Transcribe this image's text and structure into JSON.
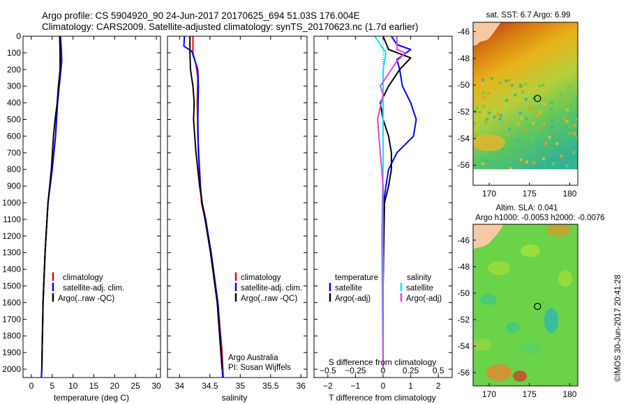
{
  "header": {
    "line1": "Argo profile: CS 5904920_90 24-Jun-2017 20170625_694 51.03S 176.004E",
    "line2": "Climatology: CARS2009. Satellite-adjusted climatology: synTS_20170623.nc (1.7d earlier)"
  },
  "stamp": "©IMOS 30-Jun-2017 20:41:28",
  "colors": {
    "climatology": "#ff0000",
    "satellite": "#0000ff",
    "argo": "#000000",
    "salinity_sat": "#00e5ff",
    "salinity_argo": "#e040e0",
    "land": "#f6c9a4",
    "ocean_sst_hi": "#a52a0a",
    "ocean_sst_lo": "#3dbe8c",
    "ocean_sla": "#6ad34a"
  },
  "chart_data": [
    {
      "type": "line",
      "name": "temperature-profile",
      "xlabel": "temperature (deg C)",
      "ylabel": "",
      "xlim": [
        -2,
        31
      ],
      "ylim": [
        0,
        2050
      ],
      "y_reversed": true,
      "xticks": [
        0,
        5,
        10,
        15,
        20,
        25,
        30
      ],
      "yticks": [
        0,
        100,
        200,
        300,
        400,
        500,
        600,
        700,
        800,
        900,
        1000,
        1100,
        1200,
        1300,
        1400,
        1500,
        1600,
        1700,
        1800,
        1900,
        2000
      ],
      "legend": [
        "climatology",
        "satellite-adj. clim.",
        "Argo(..raw -QC)"
      ],
      "legend_position": "lower-center",
      "series": [
        {
          "name": "climatology",
          "color": "#ff0000",
          "points": [
            [
              7.0,
              0
            ],
            [
              7.0,
              100
            ],
            [
              7.0,
              150
            ],
            [
              6.8,
              250
            ],
            [
              6.3,
              400
            ],
            [
              5.8,
              600
            ],
            [
              5.0,
              800
            ],
            [
              4.0,
              1000
            ],
            [
              3.3,
              1300
            ],
            [
              2.8,
              1600
            ],
            [
              2.5,
              2000
            ],
            [
              2.4,
              2050
            ]
          ]
        },
        {
          "name": "satellite-adj. clim.",
          "color": "#0000ff",
          "points": [
            [
              7.0,
              0
            ],
            [
              7.2,
              80
            ],
            [
              7.3,
              150
            ],
            [
              6.9,
              250
            ],
            [
              6.3,
              400
            ],
            [
              5.8,
              600
            ],
            [
              5.0,
              800
            ],
            [
              4.0,
              1000
            ],
            [
              3.3,
              1300
            ],
            [
              2.8,
              1600
            ],
            [
              2.5,
              2000
            ],
            [
              2.4,
              2050
            ]
          ]
        },
        {
          "name": "Argo(..raw -QC)",
          "color": "#000000",
          "points": [
            [
              6.8,
              0
            ],
            [
              6.9,
              100
            ],
            [
              6.9,
              200
            ],
            [
              6.5,
              300
            ],
            [
              6.2,
              400
            ],
            [
              5.7,
              500
            ],
            [
              5.3,
              600
            ],
            [
              4.8,
              800
            ],
            [
              4.0,
              1000
            ],
            [
              3.3,
              1300
            ],
            [
              2.8,
              1600
            ],
            [
              2.5,
              2000
            ]
          ]
        }
      ]
    },
    {
      "type": "line",
      "name": "salinity-profile",
      "xlabel": "salinity",
      "ylabel": "",
      "xlim": [
        33.8,
        36.1
      ],
      "ylim": [
        0,
        2050
      ],
      "y_reversed": true,
      "xticks": [
        34,
        34.5,
        35,
        35.5,
        36
      ],
      "legend": [
        "climatology",
        "satellite-adj. clim.",
        "Argo(..raw -QC)"
      ],
      "legend_position": "lower-center",
      "annotation": [
        "Argo Australia",
        "PI: Susan Wijffels"
      ],
      "series": [
        {
          "name": "climatology",
          "color": "#ff0000",
          "points": [
            [
              34.22,
              0
            ],
            [
              34.22,
              100
            ],
            [
              34.27,
              170
            ],
            [
              34.3,
              250
            ],
            [
              34.29,
              400
            ],
            [
              34.3,
              600
            ],
            [
              34.33,
              800
            ],
            [
              34.36,
              1000
            ],
            [
              34.42,
              1100
            ],
            [
              34.52,
              1300
            ],
            [
              34.63,
              1600
            ],
            [
              34.7,
              1900
            ],
            [
              34.72,
              2050
            ]
          ]
        },
        {
          "name": "satellite-adj. clim.",
          "color": "#0000ff",
          "points": [
            [
              34.08,
              0
            ],
            [
              34.07,
              60
            ],
            [
              34.2,
              90
            ],
            [
              34.3,
              200
            ],
            [
              34.31,
              300
            ],
            [
              34.3,
              500
            ],
            [
              34.31,
              700
            ],
            [
              34.34,
              900
            ],
            [
              34.37,
              1000
            ],
            [
              34.43,
              1100
            ],
            [
              34.52,
              1300
            ],
            [
              34.63,
              1600
            ],
            [
              34.69,
              1900
            ],
            [
              34.71,
              2050
            ]
          ]
        },
        {
          "name": "Argo(..raw -QC)",
          "color": "#000000",
          "points": [
            [
              34.17,
              0
            ],
            [
              34.17,
              100
            ],
            [
              34.18,
              200
            ],
            [
              34.22,
              300
            ],
            [
              34.24,
              400
            ],
            [
              34.23,
              500
            ],
            [
              34.25,
              600
            ],
            [
              34.27,
              700
            ],
            [
              34.3,
              800
            ],
            [
              34.33,
              900
            ],
            [
              34.37,
              1000
            ],
            [
              34.42,
              1100
            ],
            [
              34.51,
              1300
            ],
            [
              34.62,
              1600
            ],
            [
              34.68,
              1900
            ],
            [
              34.7,
              2000
            ]
          ]
        }
      ]
    },
    {
      "type": "line",
      "name": "difference-profile",
      "xlabel": "T difference from climatology",
      "xlabel_top": "S difference from climatology",
      "xlim": [
        -2.5,
        2.5
      ],
      "ylim": [
        0,
        2050
      ],
      "y_reversed": true,
      "xticks": [
        -2,
        -1,
        0,
        1,
        2
      ],
      "xtick_labels": [
        "−2",
        "−1",
        "0",
        "1",
        "2"
      ],
      "s_ticks_pos": [
        -2,
        -1,
        0,
        1,
        2
      ],
      "s_tick_labels": [
        "−0.5",
        "−0.25",
        "0",
        "0.25",
        "0.5"
      ],
      "legend_title_left": "temperature",
      "legend_title_right": "salinity",
      "legend": [
        "satellite",
        "Argo(-adj)",
        "satellite",
        "Argo(-adj)"
      ],
      "series": [
        {
          "name": "satellite",
          "color": "#0000ff",
          "points": [
            [
              0.3,
              0
            ],
            [
              0.5,
              50
            ],
            [
              1.0,
              80
            ],
            [
              0.5,
              140
            ],
            [
              0.6,
              200
            ],
            [
              0.7,
              300
            ],
            [
              1.0,
              400
            ],
            [
              1.2,
              500
            ],
            [
              1.1,
              600
            ],
            [
              0.5,
              700
            ],
            [
              0.2,
              800
            ],
            [
              0.1,
              900
            ],
            [
              0.02,
              1000
            ],
            [
              0.0,
              1500
            ],
            [
              0.0,
              2000
            ]
          ]
        },
        {
          "name": "Argo(-adj)",
          "color": "#000000",
          "points": [
            [
              0.0,
              0
            ],
            [
              0.2,
              80
            ],
            [
              1.0,
              130
            ],
            [
              0.6,
              200
            ],
            [
              0.2,
              300
            ],
            [
              -0.1,
              400
            ],
            [
              0.0,
              500
            ],
            [
              0.2,
              600
            ],
            [
              0.3,
              700
            ],
            [
              0.3,
              800
            ],
            [
              0.2,
              900
            ],
            [
              0.05,
              1000
            ],
            [
              0.0,
              1500
            ],
            [
              0.0,
              2000
            ]
          ]
        },
        {
          "name": "satellite",
          "color": "#00e5ff",
          "points": [
            [
              -0.3,
              0
            ],
            [
              -0.1,
              50
            ],
            [
              0.1,
              100
            ],
            [
              0.0,
              200
            ],
            [
              0.0,
              400
            ],
            [
              0.0,
              800
            ],
            [
              -0.05,
              1200
            ],
            [
              0.0,
              2000
            ]
          ]
        },
        {
          "name": "Argo(-adj)",
          "color": "#e040e0",
          "points": [
            [
              0.5,
              0
            ],
            [
              0.5,
              80
            ],
            [
              0.8,
              100
            ],
            [
              0.5,
              150
            ],
            [
              -0.1,
              300
            ],
            [
              0.0,
              350
            ],
            [
              -0.2,
              500
            ],
            [
              -0.1,
              700
            ],
            [
              0.0,
              900
            ],
            [
              0.0,
              1100
            ],
            [
              0.0,
              2000
            ]
          ]
        }
      ]
    },
    {
      "type": "heatmap",
      "name": "sst-map",
      "title": "sat. SST: 6.7 Argo: 6.99",
      "xlim": [
        168,
        181
      ],
      "ylim": [
        -57.5,
        -45.3
      ],
      "xticks": [
        170,
        175,
        180
      ],
      "yticks": [
        -46,
        -48,
        -50,
        -52,
        -54,
        -56
      ],
      "marker": [
        176.0,
        -51.0
      ]
    },
    {
      "type": "heatmap",
      "name": "sla-map",
      "title_line1": "Altim. SLA: 0.041",
      "title_line2": "Argo h1000: -0.0053 h2000: -0.0076",
      "xlim": [
        168,
        181
      ],
      "ylim": [
        -57.0,
        -44.8
      ],
      "xticks": [
        170,
        175,
        180
      ],
      "yticks": [
        -46,
        -48,
        -50,
        -52,
        -54,
        -56
      ],
      "marker": [
        176.0,
        -51.0
      ]
    }
  ]
}
